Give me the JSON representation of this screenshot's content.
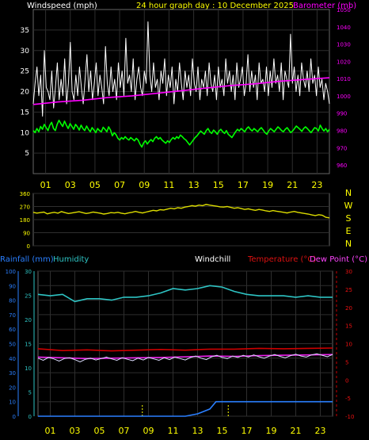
{
  "chart_data": [
    {
      "type": "line",
      "title": "24 hour graph day : 10 December 2025",
      "ylabel": "Windspeed (mph)",
      "y2label": "Barometer (mb)",
      "xlim": [
        0,
        24
      ],
      "x_ticks": [
        "01",
        "03",
        "05",
        "07",
        "09",
        "11",
        "13",
        "15",
        "17",
        "19",
        "21",
        "23"
      ],
      "ylim": [
        0,
        40
      ],
      "y_ticks": [
        5,
        10,
        15,
        20,
        25,
        30,
        35
      ],
      "y2lim": [
        955,
        1050
      ],
      "y2_ticks": [
        960,
        970,
        980,
        990,
        1000,
        1010,
        1020,
        1030,
        1040,
        1050
      ],
      "series": [
        {
          "role": "gust",
          "color": "#ffffff",
          "values": [
            17,
            22,
            26,
            19,
            24,
            14,
            30,
            21,
            20,
            18,
            25,
            16,
            21,
            27,
            18,
            23,
            19,
            28,
            17,
            22,
            32,
            20,
            18,
            24,
            19,
            26,
            21,
            17,
            23,
            29,
            20,
            25,
            18,
            22,
            27,
            19,
            24,
            21,
            17,
            31,
            22,
            19,
            26,
            20,
            23,
            18,
            27,
            21,
            25,
            19,
            33,
            22,
            24,
            20,
            28,
            18,
            23,
            26,
            21,
            19,
            25,
            22,
            37,
            24,
            20,
            27,
            21,
            23,
            18,
            25,
            22,
            28,
            19,
            24,
            21,
            26,
            17,
            23,
            20,
            27,
            22,
            18,
            25,
            21,
            24,
            19,
            28,
            22,
            20,
            26,
            18,
            23,
            21,
            25,
            19,
            27,
            22,
            20,
            24,
            18,
            26,
            21,
            23,
            19,
            28,
            22,
            25,
            20,
            24,
            18,
            27,
            21,
            23,
            26,
            19,
            22,
            29,
            20,
            25,
            21,
            24,
            18,
            27,
            22,
            23,
            20,
            26,
            19,
            25,
            21,
            28,
            22,
            24,
            20,
            27,
            18,
            25,
            23,
            21,
            34,
            22,
            26,
            20,
            24,
            19,
            27,
            23,
            21,
            25,
            20,
            28,
            22,
            24,
            19,
            26,
            21,
            23,
            18,
            22,
            20,
            17
          ]
        },
        {
          "role": "average",
          "color": "#00ff00",
          "values": [
            10.5,
            10,
            11,
            10.2,
            11.5,
            10.8,
            12,
            11.2,
            10.5,
            11.8,
            12.5,
            11,
            10.5,
            12,
            13,
            12.2,
            11.5,
            12.8,
            11.8,
            11,
            12.2,
            11.5,
            10.8,
            12,
            11.4,
            10.6,
            11.8,
            11,
            10.5,
            11.6,
            10.8,
            10.2,
            11.2,
            10.6,
            10,
            11,
            10.5,
            10.2,
            11.3,
            10.8,
            10.2,
            11.4,
            10.6,
            9.2,
            10,
            9.5,
            8.6,
            8.2,
            8.8,
            8.4,
            9,
            8.5,
            8.2,
            8.8,
            8.4,
            8,
            8.6,
            8.2,
            7.2,
            6.5,
            7.5,
            8,
            7.2,
            7.8,
            8.3,
            7.8,
            8.6,
            9,
            8.4,
            8.8,
            8.2,
            7.8,
            7.4,
            8,
            7.6,
            8.3,
            8.8,
            8.4,
            9,
            8.6,
            9.4,
            9,
            8.5,
            8.2,
            7.6,
            7,
            7.6,
            8.2,
            8.8,
            9.2,
            9.8,
            10.4,
            10,
            9.6,
            10.5,
            11,
            10.2,
            9.8,
            10.6,
            10.2,
            9.6,
            10.4,
            10.8,
            10.2,
            9.8,
            10.5,
            9.6,
            9.2,
            8.8,
            9.5,
            10.2,
            10.8,
            10.4,
            11,
            10.6,
            10.2,
            11,
            11.4,
            10.8,
            10.4,
            11,
            10.6,
            10.2,
            10.8,
            11.2,
            10.6,
            10,
            9.6,
            10.4,
            11,
            10.6,
            10.2,
            10.8,
            11.4,
            11,
            10.5,
            10.2,
            10.8,
            11.2,
            10.6,
            10,
            10.4,
            11,
            11.6,
            11.2,
            10.8,
            10.3,
            11,
            11.4,
            11,
            10.5,
            10,
            10.6,
            11.2,
            11,
            10.4,
            11.8,
            11,
            10.4,
            11,
            10.2,
            10.8
          ]
        },
        {
          "role": "barometer",
          "axis": "y2",
          "color": "#ff00ff",
          "values": [
            [
              0,
              995
            ],
            [
              2,
              996.5
            ],
            [
              4,
              997.5
            ],
            [
              6,
              999
            ],
            [
              8,
              1000
            ],
            [
              10,
              1001.5
            ],
            [
              12,
              1003
            ],
            [
              14,
              1004.5
            ],
            [
              16,
              1006
            ],
            [
              18,
              1007
            ],
            [
              20,
              1008.5
            ],
            [
              22,
              1009.5
            ],
            [
              24,
              1010.5
            ]
          ]
        }
      ]
    },
    {
      "type": "line",
      "xlim": [
        0,
        24
      ],
      "ylim": [
        0,
        360
      ],
      "y_ticks": [
        0,
        90,
        180,
        270,
        360
      ],
      "y2_labels": [
        "N",
        "W",
        "S",
        "E",
        "N"
      ],
      "series": [
        {
          "role": "wind-direction",
          "color": "#dddd00",
          "values": [
            230,
            225,
            228,
            232,
            220,
            226,
            230,
            224,
            235,
            228,
            222,
            226,
            230,
            234,
            228,
            222,
            226,
            232,
            228,
            224,
            218,
            222,
            228,
            226,
            230,
            224,
            220,
            226,
            230,
            236,
            230,
            226,
            232,
            238,
            244,
            240,
            248,
            246,
            252,
            258,
            254,
            262,
            258,
            266,
            270,
            276,
            272,
            280,
            276,
            284,
            280,
            276,
            272,
            268,
            266,
            270,
            264,
            258,
            262,
            256,
            250,
            254,
            248,
            244,
            250,
            246,
            240,
            236,
            242,
            238,
            234,
            230,
            226,
            232,
            236,
            230,
            226,
            222,
            218,
            212,
            208,
            214,
            210,
            196,
            192
          ]
        }
      ]
    },
    {
      "type": "line",
      "ylabel": "Rainfall (mm)",
      "ylabel2": "Humidity",
      "label_windchill": "Windchill",
      "label_temperature": "Temperature (°C)",
      "label_dewpoint": "Dew Point (°C)",
      "xlim": [
        0,
        24
      ],
      "x_ticks": [
        "01",
        "03",
        "05",
        "07",
        "09",
        "11",
        "13",
        "15",
        "17",
        "19",
        "21",
        "23"
      ],
      "hum_ylim": [
        0,
        100
      ],
      "hum_ticks": [
        0,
        10,
        20,
        30,
        40,
        50,
        60,
        70,
        80,
        90,
        100
      ],
      "rain_ylim": [
        0,
        30
      ],
      "rain_ticks": [
        0,
        5,
        10,
        15,
        20,
        25,
        30
      ],
      "temp_ylim": [
        -10,
        30
      ],
      "temp_ticks": [
        30,
        25,
        20,
        15,
        10,
        5,
        0,
        -5,
        -10
      ],
      "series": [
        {
          "role": "humidity",
          "color": "#2ec4c4",
          "values": [
            [
              0,
              84
            ],
            [
              1,
              83
            ],
            [
              2,
              84
            ],
            [
              3,
              79
            ],
            [
              4,
              81
            ],
            [
              5,
              81
            ],
            [
              6,
              80
            ],
            [
              7,
              82
            ],
            [
              8,
              82
            ],
            [
              9,
              83
            ],
            [
              10,
              85
            ],
            [
              11,
              88
            ],
            [
              12,
              87
            ],
            [
              13,
              88
            ],
            [
              14,
              90
            ],
            [
              15,
              89
            ],
            [
              16,
              86
            ],
            [
              17,
              84
            ],
            [
              18,
              83
            ],
            [
              19,
              83
            ],
            [
              20,
              83
            ],
            [
              21,
              82
            ],
            [
              22,
              83
            ],
            [
              23,
              82
            ],
            [
              24,
              82
            ]
          ]
        },
        {
          "role": "temperature",
          "color": "#cc0000",
          "values": [
            [
              0,
              8.6
            ],
            [
              2,
              8.1
            ],
            [
              4,
              8.3
            ],
            [
              6,
              8.0
            ],
            [
              8,
              8.2
            ],
            [
              10,
              8.4
            ],
            [
              12,
              8.2
            ],
            [
              14,
              8.5
            ],
            [
              16,
              8.5
            ],
            [
              18,
              8.7
            ],
            [
              20,
              8.6
            ],
            [
              22,
              8.7
            ],
            [
              24,
              8.8
            ]
          ]
        },
        {
          "role": "dewpoint",
          "color": "#ee22ee",
          "values": [
            [
              0,
              6.3
            ],
            [
              2,
              6.1
            ],
            [
              4,
              5.9
            ],
            [
              6,
              6.0
            ],
            [
              8,
              6.1
            ],
            [
              10,
              6.2
            ],
            [
              12,
              6.4
            ],
            [
              14,
              6.6
            ],
            [
              16,
              6.5
            ],
            [
              18,
              6.7
            ],
            [
              20,
              6.8
            ],
            [
              22,
              6.9
            ],
            [
              24,
              7.0
            ]
          ]
        },
        {
          "role": "windchill",
          "color": "#ddddff",
          "values": [
            6.0,
            5.4,
            6.2,
            5.8,
            5.2,
            5.9,
            6.1,
            5.6,
            5.0,
            5.7,
            6.0,
            5.5,
            5.9,
            6.3,
            5.8,
            5.4,
            6.1,
            5.7,
            5.3,
            6.0,
            5.5,
            6.2,
            5.8,
            5.4,
            6.1,
            5.6,
            6.3,
            5.9,
            5.5,
            6.2,
            6.6,
            6.0,
            5.6,
            6.4,
            6.8,
            6.2,
            5.9,
            6.6,
            6.2,
            6.8,
            6.3,
            6.9,
            6.4,
            6.0,
            6.6,
            7.0,
            6.5,
            6.1,
            6.7,
            7.1,
            6.6,
            6.3,
            6.9,
            7.2,
            6.8,
            6.4,
            7.0
          ]
        },
        {
          "role": "rainfall",
          "axis": "rain",
          "color": "#2a7fff",
          "values": [
            [
              0,
              0
            ],
            [
              12,
              0
            ],
            [
              13,
              0.5
            ],
            [
              14,
              1.5
            ],
            [
              14.5,
              3
            ],
            [
              16,
              3
            ],
            [
              24,
              3
            ]
          ]
        }
      ],
      "marker_hours": [
        8.5,
        15.5
      ]
    }
  ]
}
